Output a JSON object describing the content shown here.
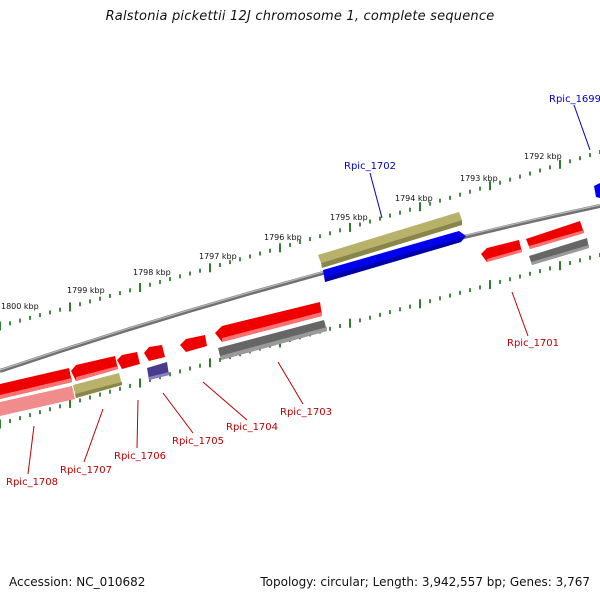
{
  "title": "Ralstonia pickettii 12J chromosome 1, complete sequence",
  "accession_text": "Accession: NC_010682",
  "summary_text": "Topology: circular; Length: 3,942,557 bp; Genes: 3,767",
  "colors": {
    "backbone": "#8c8c8c",
    "ticks": "#2e7d2e",
    "forward_label": "#0000bb",
    "reverse_label": "#bb0000"
  },
  "scale_labels": [
    {
      "text": "1800 kbp",
      "kbp": 1800
    },
    {
      "text": "1799 kbp",
      "kbp": 1799
    },
    {
      "text": "1798 kbp",
      "kbp": 1798
    },
    {
      "text": "1797 kbp",
      "kbp": 1797
    },
    {
      "text": "1796 kbp",
      "kbp": 1796
    },
    {
      "text": "1795 kbp",
      "kbp": 1795
    },
    {
      "text": "1794 kbp",
      "kbp": 1794
    },
    {
      "text": "1793 kbp",
      "kbp": 1793
    },
    {
      "text": "1792 kbp",
      "kbp": 1792
    }
  ],
  "gene_labels": [
    {
      "text": "Rpic_1699",
      "strand": "forward"
    },
    {
      "text": "Rpic_1702",
      "strand": "forward"
    },
    {
      "text": "Rpic_1701",
      "strand": "reverse"
    },
    {
      "text": "Rpic_1703",
      "strand": "reverse"
    },
    {
      "text": "Rpic_1704",
      "strand": "reverse"
    },
    {
      "text": "Rpic_1705",
      "strand": "reverse"
    },
    {
      "text": "Rpic_1706",
      "strand": "reverse"
    },
    {
      "text": "Rpic_1707",
      "strand": "reverse"
    },
    {
      "text": "Rpic_1708",
      "strand": "reverse"
    }
  ]
}
